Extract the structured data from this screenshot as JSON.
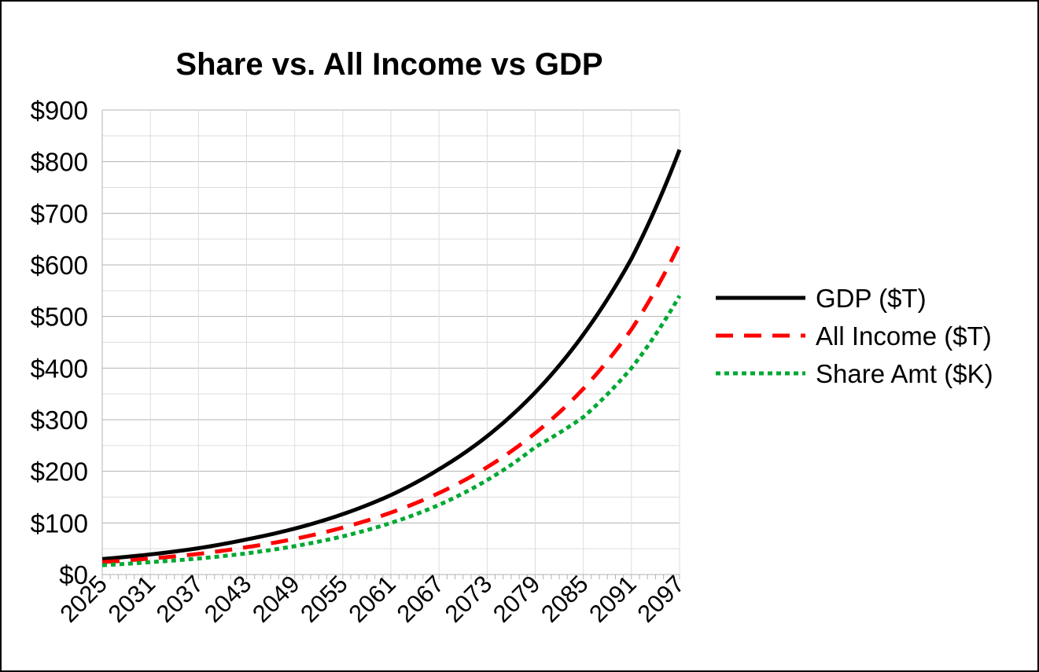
{
  "chart_data": {
    "type": "line",
    "title": "Share vs. All Income vs GDP",
    "xlabel": "",
    "ylabel": "",
    "x": [
      2025,
      2031,
      2037,
      2043,
      2049,
      2055,
      2061,
      2067,
      2073,
      2079,
      2085,
      2091,
      2097
    ],
    "x_ticks": [
      "2025",
      "2031",
      "2037",
      "2043",
      "2049",
      "2055",
      "2061",
      "2067",
      "2073",
      "2079",
      "2085",
      "2091",
      "2097"
    ],
    "ylim": [
      0,
      900
    ],
    "y_ticks": [
      "$0",
      "$100",
      "$200",
      "$300",
      "$400",
      "$500",
      "$600",
      "$700",
      "$800",
      "$900"
    ],
    "y_tick_values": [
      0,
      100,
      200,
      300,
      400,
      500,
      600,
      700,
      800,
      900
    ],
    "grid": true,
    "legend_position": "right",
    "series": [
      {
        "name": "GDP ($T)",
        "color": "#000000",
        "style": "solid",
        "values": [
          30,
          39,
          51,
          68,
          89,
          117,
          154,
          204,
          268,
          353,
          465,
          612,
          823
        ]
      },
      {
        "name": "All Income ($T)",
        "color": "#ff0000",
        "style": "dashed",
        "values": [
          24,
          31,
          40,
          53,
          69,
          91,
          120,
          158,
          208,
          274,
          360,
          475,
          640
        ]
      },
      {
        "name": "Share Amt ($K)",
        "color": "#00a933",
        "style": "dotted",
        "values": [
          18,
          24,
          31,
          41,
          55,
          74,
          100,
          135,
          183,
          247,
          305,
          400,
          540
        ]
      }
    ]
  }
}
